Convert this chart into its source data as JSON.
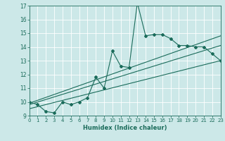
{
  "xlabel": "Humidex (Indice chaleur)",
  "bg_color": "#cce8e8",
  "grid_color": "#ffffff",
  "line_color": "#1a6b5a",
  "xlim": [
    0,
    23
  ],
  "ylim": [
    9,
    17
  ],
  "yticks": [
    9,
    10,
    11,
    12,
    13,
    14,
    15,
    16,
    17
  ],
  "xticks": [
    0,
    1,
    2,
    3,
    4,
    5,
    6,
    7,
    8,
    9,
    10,
    11,
    12,
    13,
    14,
    15,
    16,
    17,
    18,
    19,
    20,
    21,
    22,
    23
  ],
  "series1_x": [
    0,
    1,
    2,
    3,
    4,
    5,
    6,
    7,
    8,
    9,
    10,
    11,
    12,
    13,
    14,
    15,
    16,
    17,
    18,
    19,
    20,
    21,
    22,
    23
  ],
  "series1_y": [
    10.0,
    9.8,
    9.3,
    9.2,
    10.0,
    9.8,
    10.0,
    10.3,
    11.8,
    11.0,
    13.7,
    12.6,
    12.5,
    17.2,
    14.8,
    14.9,
    14.9,
    14.6,
    14.1,
    14.1,
    14.0,
    14.0,
    13.5,
    13.0
  ],
  "series2_x": [
    0,
    23
  ],
  "series2_y": [
    9.5,
    13.0
  ],
  "series3_x": [
    0,
    23
  ],
  "series3_y": [
    9.8,
    14.1
  ],
  "series4_x": [
    0,
    23
  ],
  "series4_y": [
    9.9,
    14.8
  ]
}
